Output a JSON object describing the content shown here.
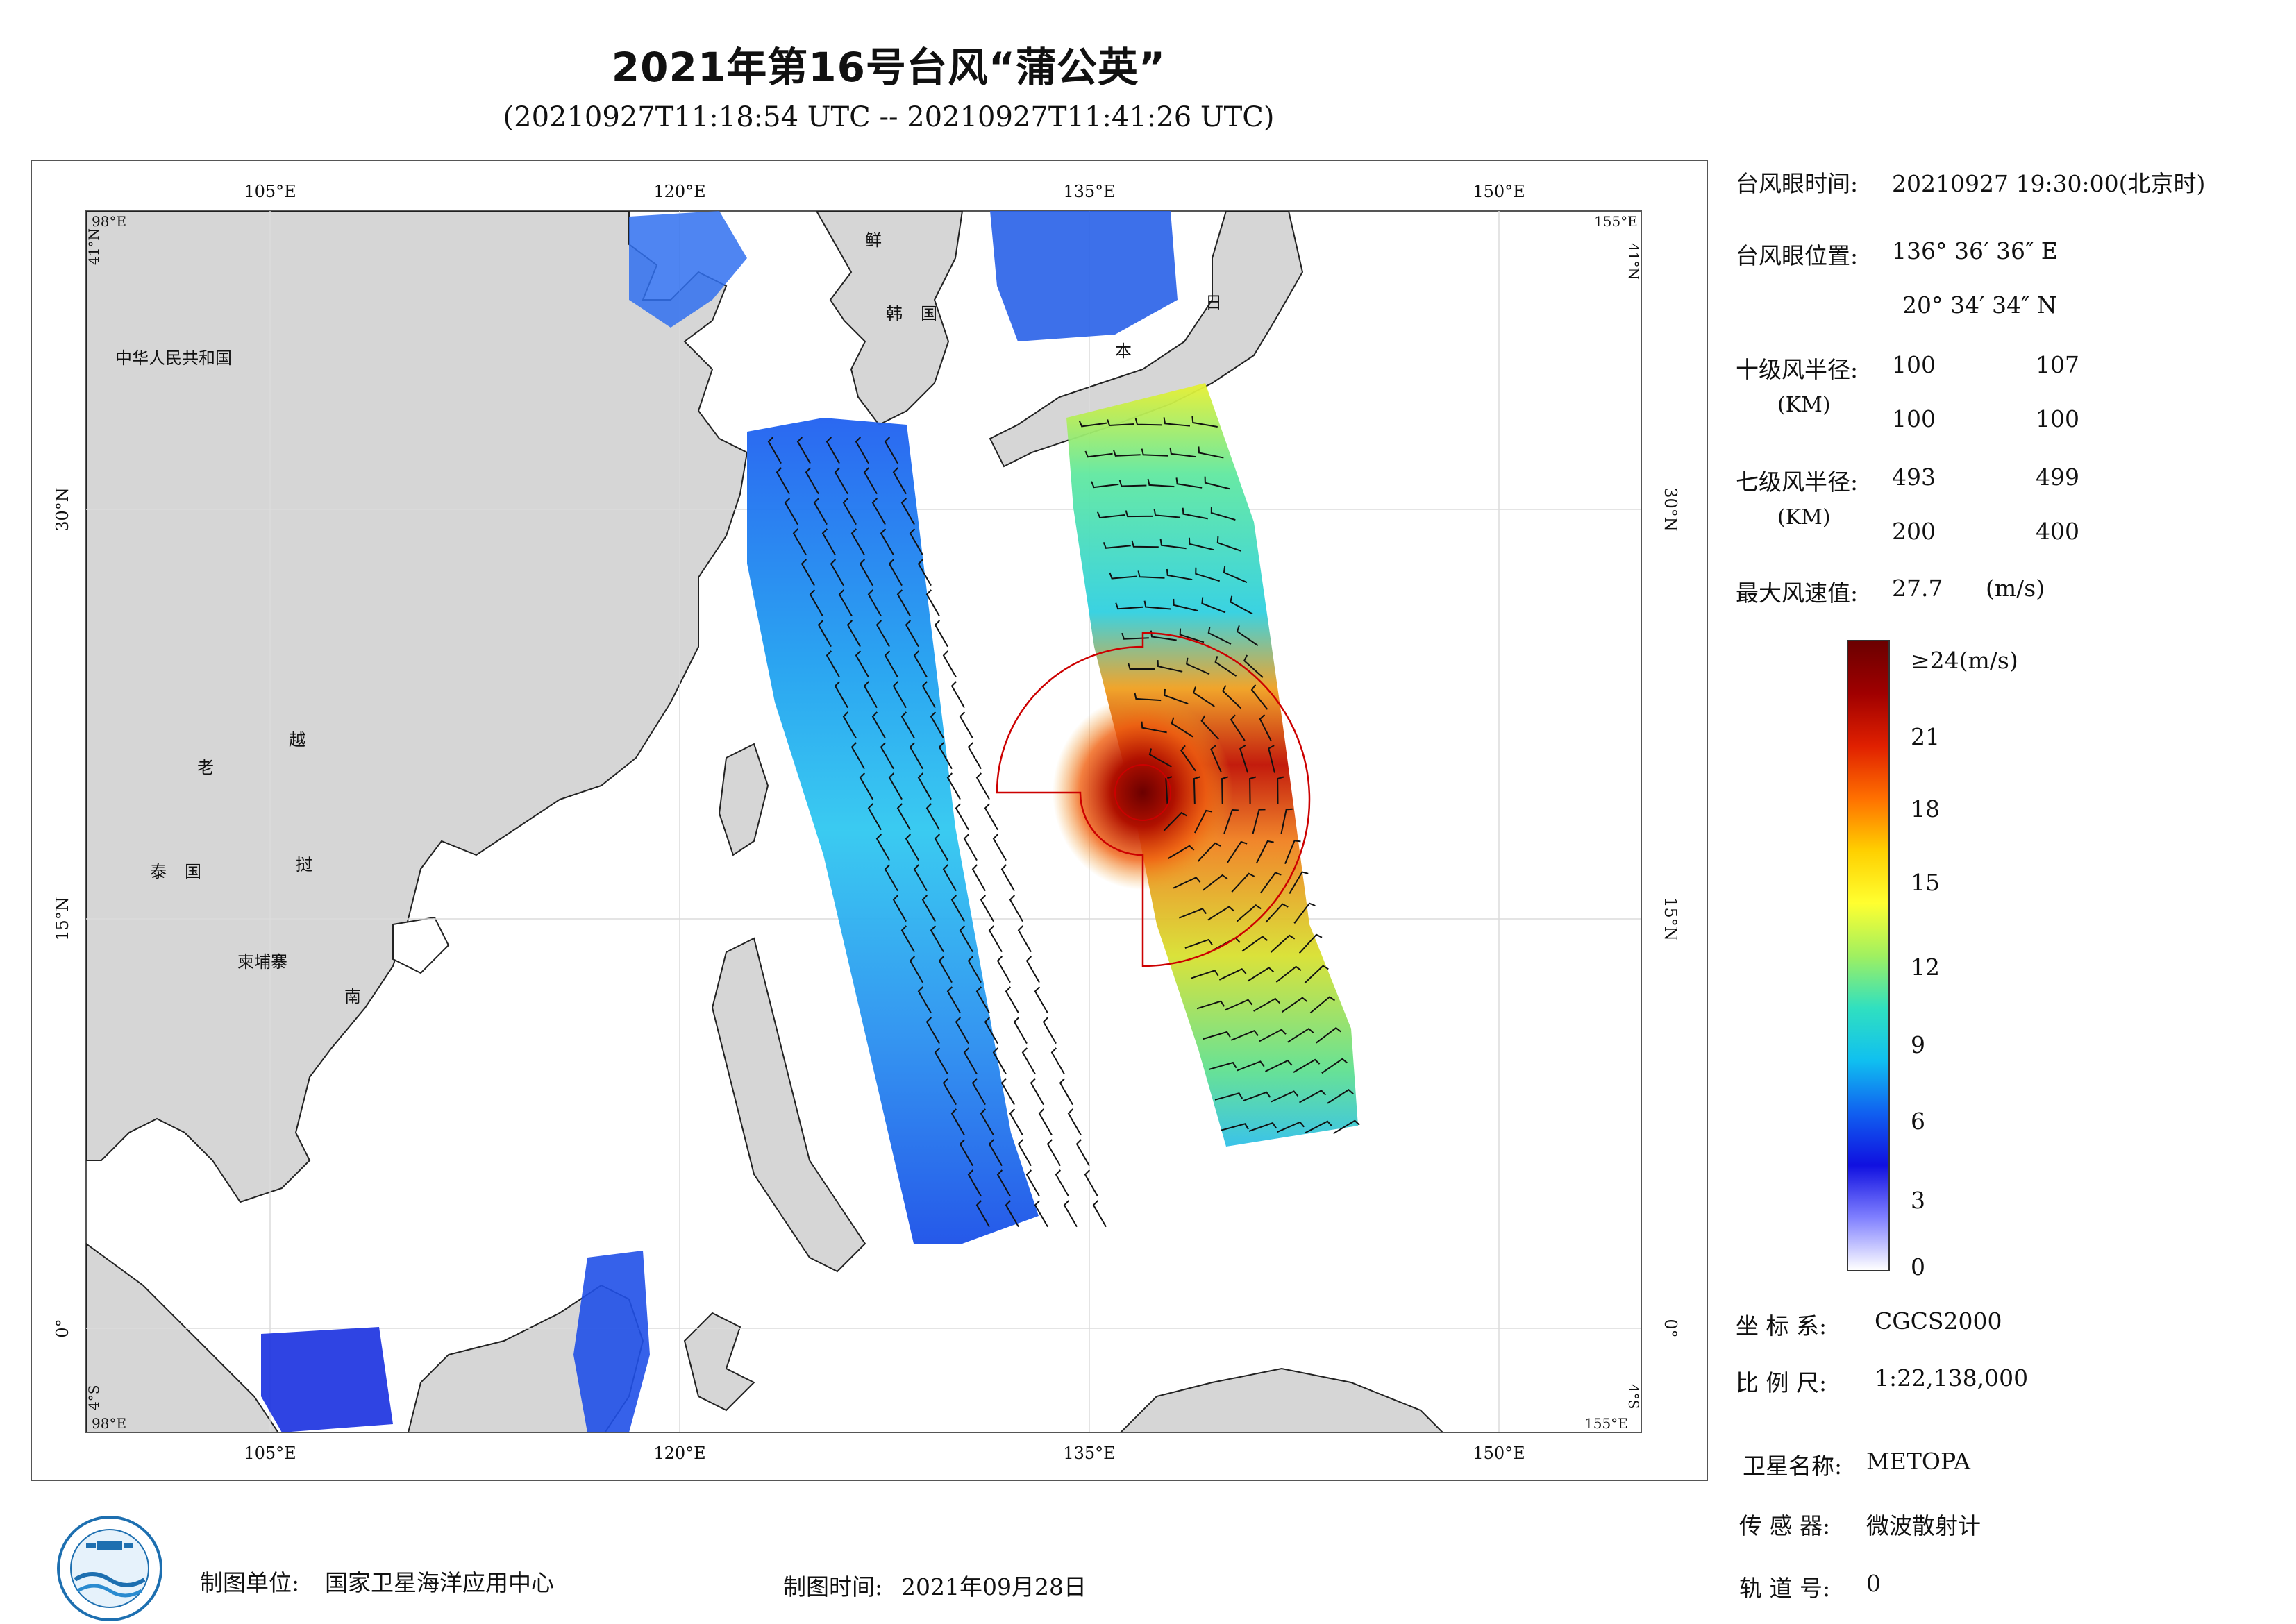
{
  "title": "2021年第16号台风“蒲公英”",
  "subtitle": "(20210927T11:18:54 UTC -- 20210927T11:41:26 UTC)",
  "map": {
    "lon_ticks": [
      "105°E",
      "120°E",
      "135°E",
      "150°E"
    ],
    "lat_ticks": [
      "30°N",
      "15°N",
      "0°"
    ],
    "corner_labels": {
      "nw_lon": "98°E",
      "nw_lat": "41°N",
      "ne_lon": "155°E",
      "ne_lat": "41°N",
      "sw_lon": "98°E",
      "sw_lat": "4°S",
      "se_lon": "155°E",
      "se_lat": "4°S"
    },
    "place_names": [
      "中华人民共和国",
      "鲜",
      "韩",
      "国",
      "日",
      "本",
      "老",
      "越",
      "泰",
      "国",
      "挝",
      "柬埔寨",
      "南"
    ],
    "land_color": "#d6d6d6",
    "sea_color": "#ffffff",
    "wind_circle_color": "#cc0000"
  },
  "info": {
    "eye_time_label": "台风眼时间:",
    "eye_time_value": "20210927 19:30:00(北京时)",
    "eye_pos_label": "台风眼位置:",
    "eye_lon": "136° 36′ 36″ E",
    "eye_lat": "20° 34′ 34″ N",
    "r10_label": "十级风半径:",
    "r10_unit": "(KM)",
    "r10_values": [
      "100",
      "107",
      "100",
      "100"
    ],
    "r7_label": "七级风半径:",
    "r7_unit": "(KM)",
    "r7_values": [
      "493",
      "499",
      "200",
      "400"
    ],
    "max_wind_label": "最大风速值:",
    "max_wind_value": "27.7",
    "max_wind_unit": "(m/s)"
  },
  "colorbar": {
    "labels": [
      "≥24(m/s)",
      "21",
      "18",
      "15",
      "12",
      "9",
      "6",
      "3",
      "0"
    ],
    "stops": [
      "#6b0000",
      "#a00000",
      "#e02000",
      "#ff7000",
      "#ffd000",
      "#ffff30",
      "#a0f060",
      "#30e0c0",
      "#10c0f0",
      "#1060f0",
      "#1010e0",
      "#8080ff",
      "#ffffff"
    ]
  },
  "meta": {
    "crs_label": "坐 标 系:",
    "crs_value": "CGCS2000",
    "scale_label": "比 例 尺:",
    "scale_value": "1:22,138,000",
    "sat_label": "卫星名称:",
    "sat_value": "METOPA",
    "sensor_label": "传 感 器:",
    "sensor_value": "微波散射计",
    "orbit_label": "轨 道 号:",
    "orbit_value": "0"
  },
  "footer": {
    "unit_label": "制图单位:",
    "unit_value": "国家卫星海洋应用中心",
    "time_label": "制图时间:",
    "time_value": "2021年09月28日"
  }
}
